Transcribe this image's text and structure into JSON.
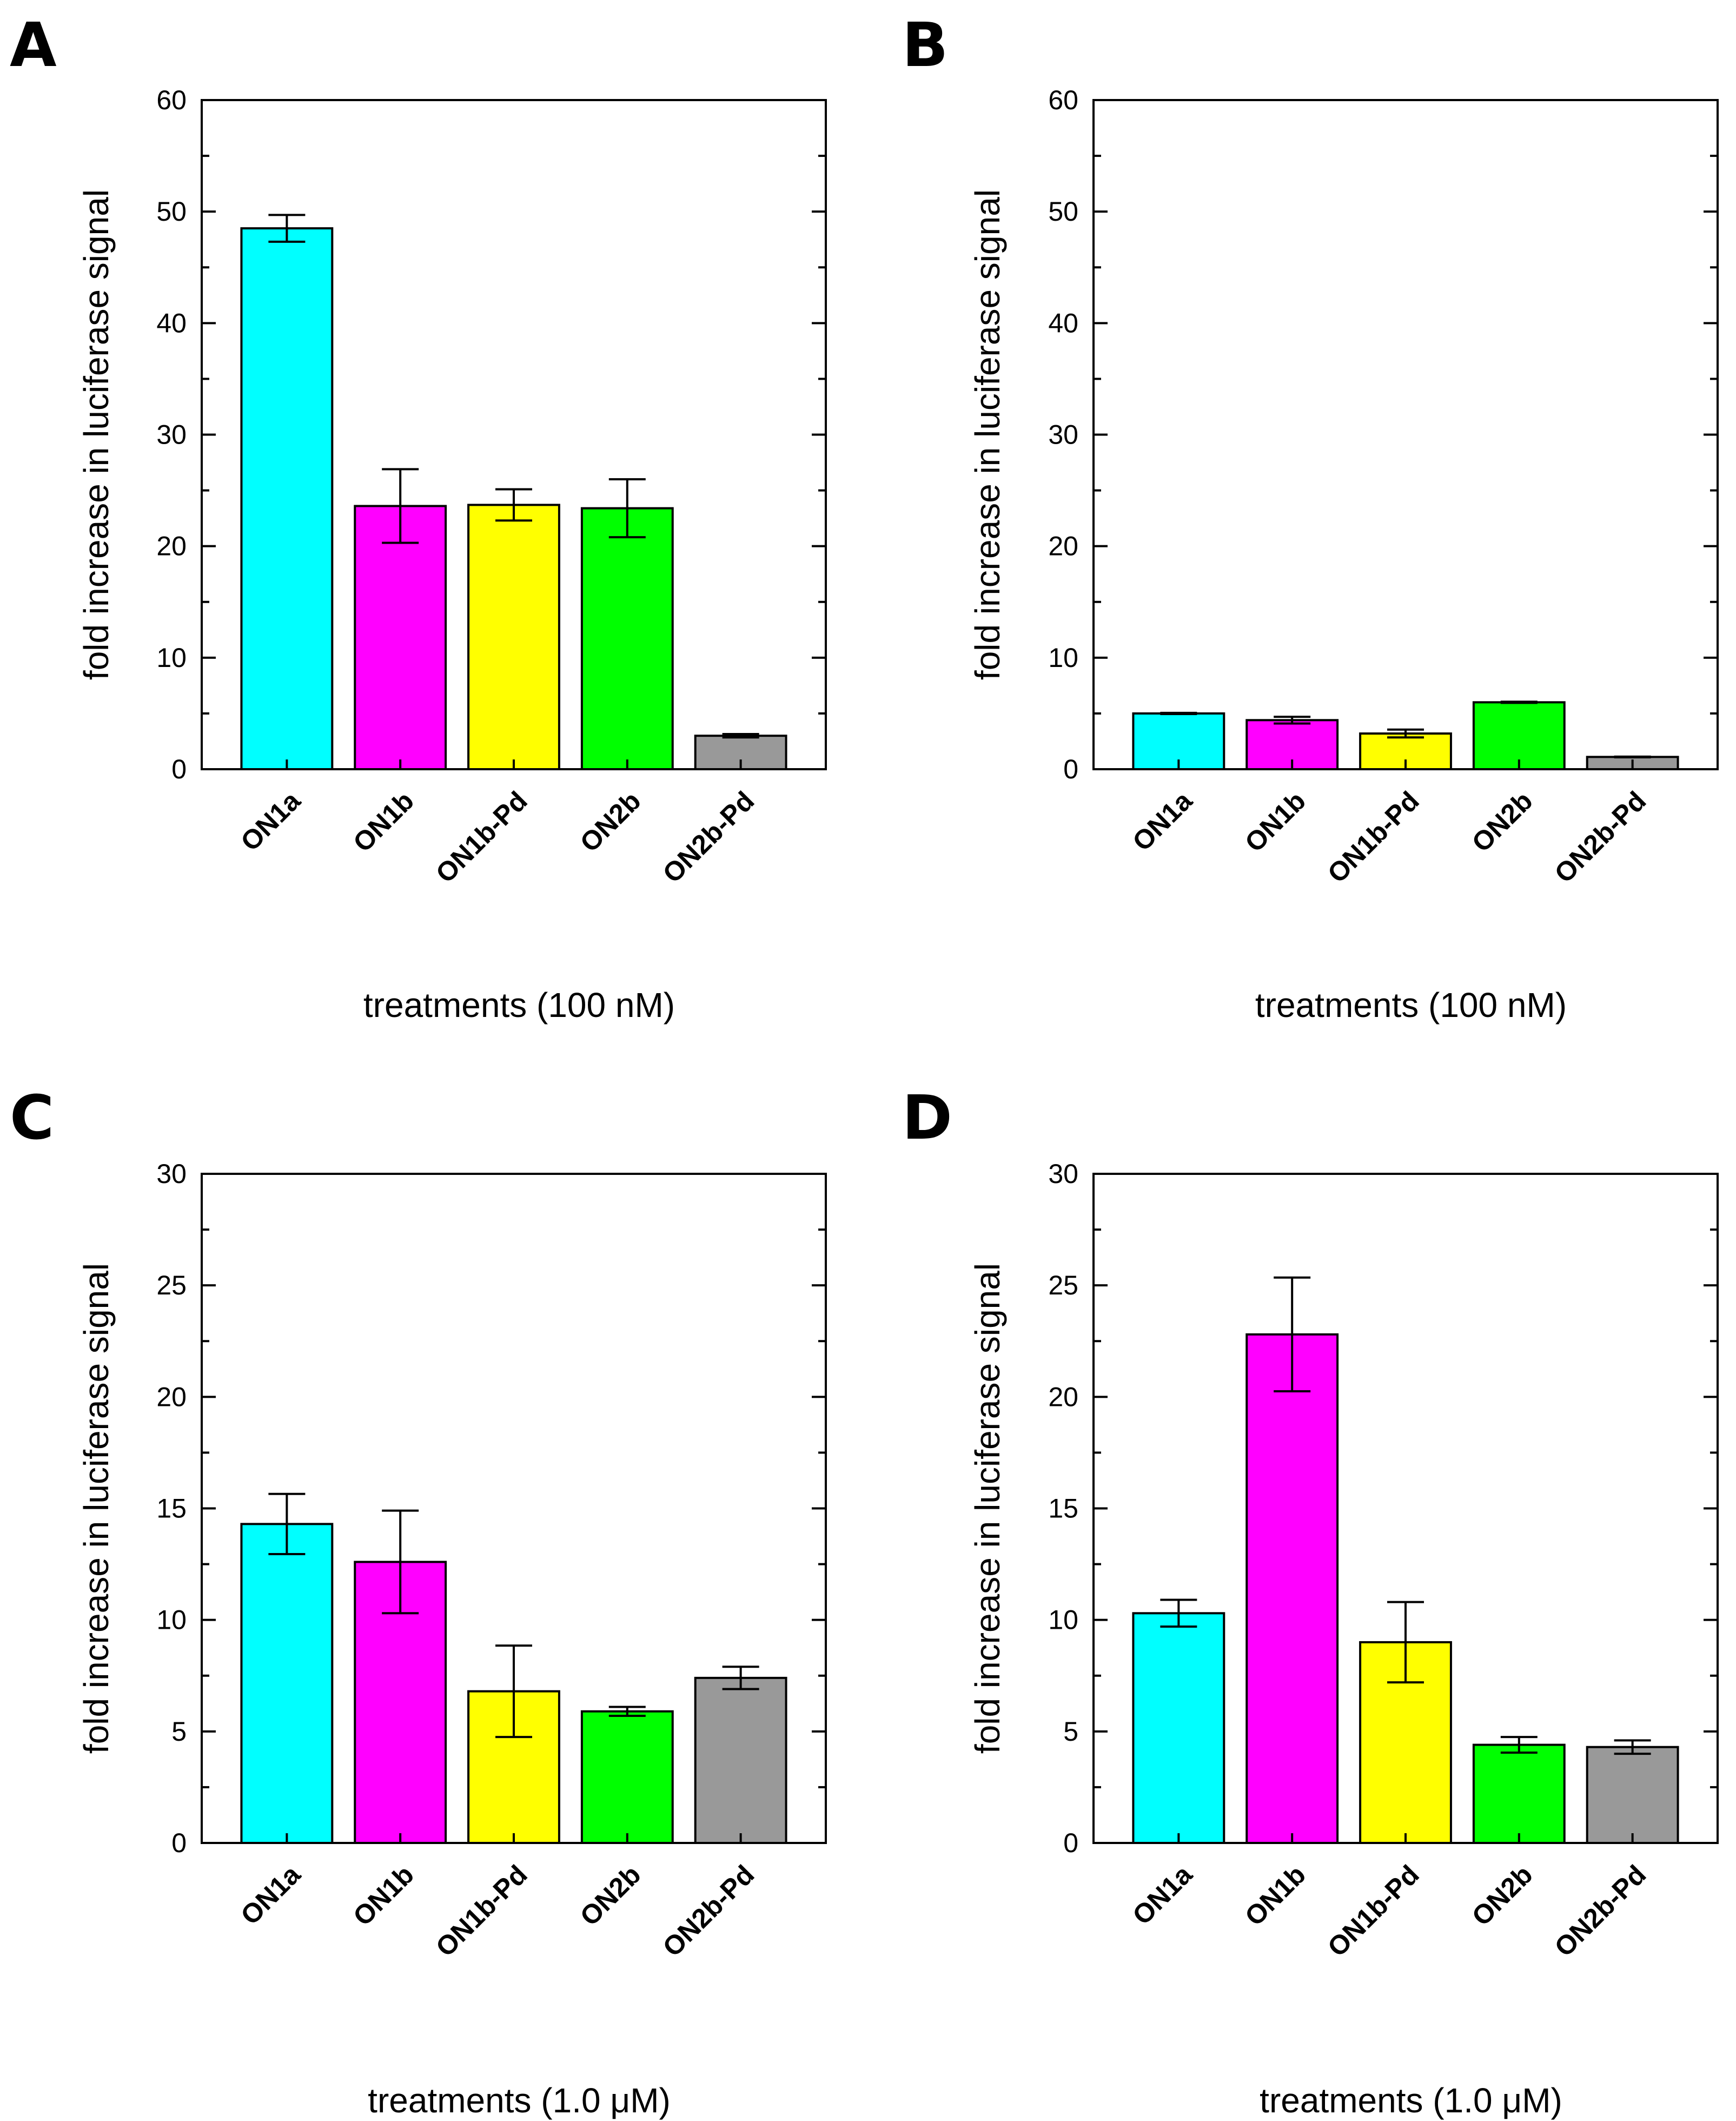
{
  "chart_data": [
    {
      "panel": "A",
      "type": "bar",
      "title": "",
      "xlabel": "treatments (100 nM)",
      "ylabel": "fold increase in luciferase signal",
      "ylim": [
        0,
        60
      ],
      "yticks": [
        0,
        10,
        20,
        30,
        40,
        50,
        60
      ],
      "categories": [
        "ON1a",
        "ON1b",
        "ON1b-Pd",
        "ON2b",
        "ON2b-Pd"
      ],
      "values": [
        48.5,
        23.6,
        23.7,
        23.4,
        3.0
      ],
      "errors": [
        1.2,
        3.3,
        1.4,
        2.6,
        0.15
      ],
      "colors": [
        "#00FFFF",
        "#FF00FF",
        "#FFFF00",
        "#00FF00",
        "#999999"
      ],
      "legend": "none",
      "grid": false
    },
    {
      "panel": "B",
      "type": "bar",
      "title": "",
      "xlabel": "treatments (100 nM)",
      "ylabel": "fold increase in luciferase signal",
      "ylim": [
        0,
        60
      ],
      "yticks": [
        0,
        10,
        20,
        30,
        40,
        50,
        60
      ],
      "categories": [
        "ON1a",
        "ON1b",
        "ON1b-Pd",
        "ON2b",
        "ON2b-Pd"
      ],
      "values": [
        5.0,
        4.4,
        3.2,
        6.0,
        1.1
      ],
      "errors": [
        0.05,
        0.3,
        0.35,
        0.05,
        0.03
      ],
      "colors": [
        "#00FFFF",
        "#FF00FF",
        "#FFFF00",
        "#00FF00",
        "#999999"
      ],
      "legend": "none",
      "grid": false
    },
    {
      "panel": "C",
      "type": "bar",
      "title": "",
      "xlabel": "treatments (1.0 μM)",
      "ylabel": "fold increase in luciferase signal",
      "ylim": [
        0,
        30
      ],
      "yticks": [
        0,
        5,
        10,
        15,
        20,
        25,
        30
      ],
      "categories": [
        "ON1a",
        "ON1b",
        "ON1b-Pd",
        "ON2b",
        "ON2b-Pd"
      ],
      "values": [
        14.3,
        12.6,
        6.8,
        5.9,
        7.4
      ],
      "errors": [
        1.35,
        2.3,
        2.05,
        0.2,
        0.5
      ],
      "colors": [
        "#00FFFF",
        "#FF00FF",
        "#FFFF00",
        "#00FF00",
        "#999999"
      ],
      "legend": "none",
      "grid": false
    },
    {
      "panel": "D",
      "type": "bar",
      "title": "",
      "xlabel": "treatments (1.0 μM)",
      "ylabel": "fold increase in luciferase signal",
      "ylim": [
        0,
        30
      ],
      "yticks": [
        0,
        5,
        10,
        15,
        20,
        25,
        30
      ],
      "categories": [
        "ON1a",
        "ON1b",
        "ON1b-Pd",
        "ON2b",
        "ON2b-Pd"
      ],
      "values": [
        10.3,
        22.8,
        9.0,
        4.4,
        4.3
      ],
      "errors": [
        0.6,
        2.55,
        1.8,
        0.35,
        0.3
      ],
      "colors": [
        "#00FFFF",
        "#FF00FF",
        "#FFFF00",
        "#00FF00",
        "#999999"
      ],
      "legend": "none",
      "grid": false
    }
  ]
}
